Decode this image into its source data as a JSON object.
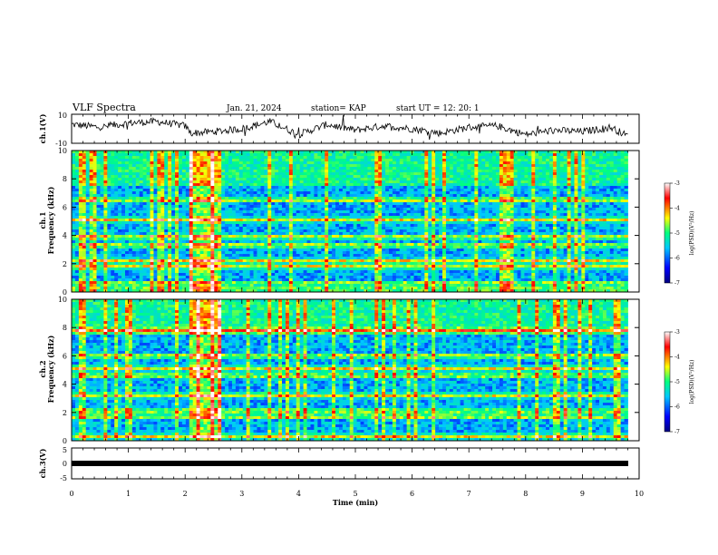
{
  "header": {
    "title": "VLF Spectra",
    "date": "Jan. 21, 2024",
    "station": "station= KAP",
    "start": "start  UT  =   12: 20: 1"
  },
  "chart_data": [
    {
      "name": "ch1_waveform",
      "type": "line",
      "ylabel": "ch.1(V)",
      "ylim": [
        -10,
        10
      ],
      "yticks": [
        "10",
        "-10"
      ],
      "x": [
        0,
        0.5,
        1,
        1.5,
        2,
        2.1,
        2.5,
        3,
        3.5,
        4,
        4.5,
        5,
        5.5,
        6,
        6.5,
        7,
        7.5,
        8,
        8.5,
        9,
        9.5,
        9.8
      ],
      "values": [
        3,
        1,
        4,
        5,
        2,
        -3,
        -2,
        0,
        5,
        -4,
        3,
        -1,
        2,
        0,
        -3,
        1,
        2,
        -4,
        -1,
        -2,
        1,
        -5
      ]
    },
    {
      "name": "ch1_spectrogram",
      "type": "heatmap",
      "ylabel": "Frequency (kHz)",
      "channel_label": "ch.1",
      "ylim": [
        0,
        10
      ],
      "yticks": [
        "0",
        "2",
        "4",
        "6",
        "8",
        "10"
      ],
      "colorbar_label": "log(PSD)(V²/Hz)",
      "colorbar_ticks": [
        "-3",
        "-4",
        "-5",
        "-6",
        "-7"
      ],
      "bright_bands_khz": [
        0.2,
        0.6,
        1.8,
        2.2,
        3.3,
        3.9,
        5.1,
        6.5
      ],
      "burst_interval_min": [
        2.05,
        2.65
      ]
    },
    {
      "name": "ch2_spectrogram",
      "type": "heatmap",
      "ylabel": "Frequency (kHz)",
      "channel_label": "ch.2",
      "ylim": [
        0,
        10
      ],
      "yticks": [
        "0",
        "2",
        "4",
        "6",
        "8",
        "10"
      ],
      "colorbar_label": "log(PSD)(V²/Hz)",
      "colorbar_ticks": [
        "-3",
        "-4",
        "-5",
        "-6",
        "-7"
      ],
      "bright_bands_khz": [
        0.3,
        1.7,
        2.1,
        3.2,
        4.6,
        5.1,
        6.0,
        7.8
      ],
      "burst_interval_min": [
        2.05,
        2.65
      ]
    },
    {
      "name": "ch3_waveform",
      "type": "line",
      "ylabel": "ch.3(V)",
      "ylim": [
        -5,
        5
      ],
      "yticks": [
        "5",
        "0",
        "-5"
      ],
      "x": [
        0,
        9.8
      ],
      "values": [
        0,
        0
      ]
    }
  ],
  "xaxis": {
    "label": "Time  (min)",
    "ticks": [
      "0",
      "1",
      "2",
      "3",
      "4",
      "5",
      "6",
      "7",
      "8",
      "9",
      "10"
    ],
    "range": [
      0,
      10
    ]
  },
  "colors": {
    "colormap": [
      "#00007f",
      "#0000ff",
      "#00c8ff",
      "#00ff80",
      "#ffff00",
      "#ff0000",
      "#ffffff"
    ],
    "line": "#000000"
  }
}
